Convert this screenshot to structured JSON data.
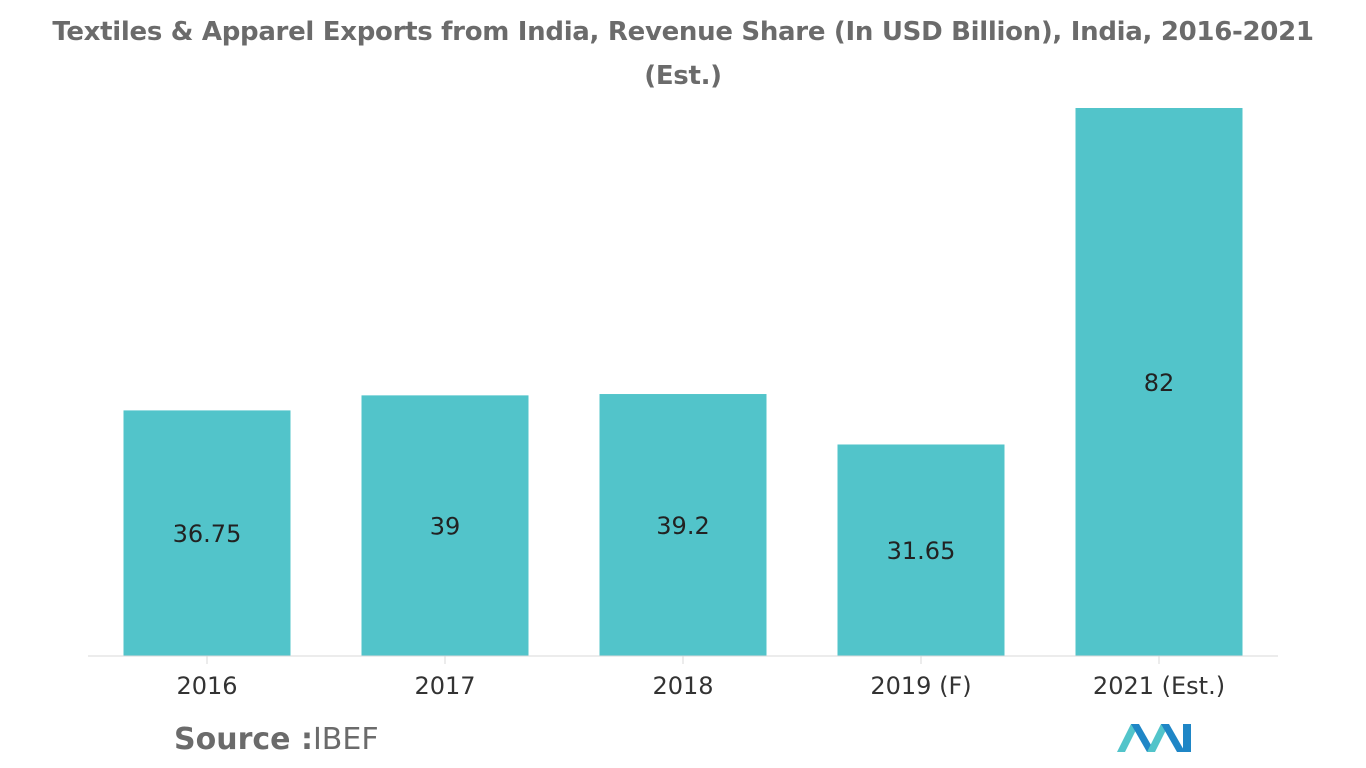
{
  "chart_data": {
    "type": "bar",
    "title": "Textiles & Apparel Exports from India, Revenue Share (In USD Billion), India, 2016-2021 (Est.)",
    "categories": [
      "2016",
      "2017",
      "2018",
      "2019 (F)",
      "2021 (Est.)"
    ],
    "values": [
      36.75,
      39,
      39.2,
      31.65,
      82
    ],
    "value_labels": [
      "36.75",
      "39",
      "39.2",
      "31.65",
      "82"
    ],
    "xlabel": "",
    "ylabel": "",
    "ylim": [
      0,
      82
    ],
    "grid": false,
    "legend": "none",
    "bar_color": "#52c4ca",
    "label_color": "#222222",
    "tick_color": "#333333"
  },
  "source": {
    "label": "Source :",
    "value": "IBEF"
  },
  "logo": {
    "icon": "mordor-intelligence-logo-icon",
    "colors": [
      "#1f86c6",
      "#52c4ca"
    ]
  }
}
